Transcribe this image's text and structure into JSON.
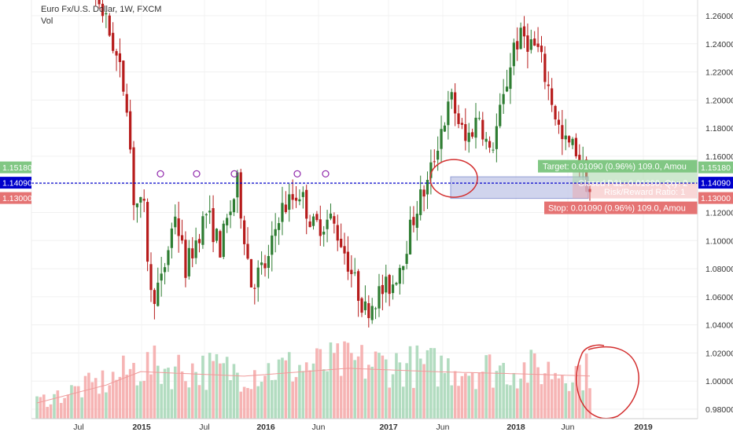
{
  "header": {
    "symbol": "Euro Fx/U.S. Dollar, 1W, FXCM",
    "indicator": "Vol"
  },
  "colors": {
    "up": "#2e7d32",
    "down": "#b71c1c",
    "vol_up": "#a5d6b5",
    "vol_down": "#f4a7a7",
    "price_line": "#0000cc",
    "target": "#81c784",
    "stop": "#e57373",
    "annotation": "#d32f2f"
  },
  "chart_data": {
    "type": "candlestick",
    "ylim": [
      0.97,
      1.27
    ],
    "y_ticks": [
      "0.98000",
      "1.00000",
      "1.02000",
      "1.04000",
      "1.06000",
      "1.08000",
      "1.10000",
      "1.12000",
      "1.14000",
      "1.16000",
      "1.18000",
      "1.20000",
      "1.22000",
      "1.24000",
      "1.26000"
    ],
    "x_ticks": [
      "Jul",
      "2015",
      "Jul",
      "2016",
      "Jun",
      "2017",
      "Jun",
      "2018",
      "Jun",
      "2019"
    ],
    "current_price": "1.14090",
    "price_labels": {
      "target": "1.15180",
      "stop": "1.13000",
      "current": "1.14090"
    },
    "position": {
      "target_text": "Target: 0.01090 (0.96%) 109.0, Amou",
      "pnl_text": "Closed P&L: 0.01090, Qty: 2",
      "rr_text": "Risk/Reward Ratio: 1",
      "stop_text": "Stop: 0.01090 (0.96%) 109.0, Amou",
      "target_price": 1.1518,
      "entry_price": 1.1409,
      "stop_price": 1.13
    },
    "anchors": [
      {
        "t": 0,
        "p": 1.36
      },
      {
        "t": 18,
        "p": 1.27
      },
      {
        "t": 22,
        "p": 1.24
      },
      {
        "t": 26,
        "p": 1.2
      },
      {
        "t": 28,
        "p": 1.13
      },
      {
        "t": 31,
        "p": 1.12
      },
      {
        "t": 33,
        "p": 1.06
      },
      {
        "t": 36,
        "p": 1.07
      },
      {
        "t": 40,
        "p": 1.12
      },
      {
        "t": 43,
        "p": 1.08
      },
      {
        "t": 49,
        "p": 1.12
      },
      {
        "t": 53,
        "p": 1.095
      },
      {
        "t": 58,
        "p": 1.14
      },
      {
        "t": 62,
        "p": 1.07
      },
      {
        "t": 67,
        "p": 1.085
      },
      {
        "t": 70,
        "p": 1.12
      },
      {
        "t": 76,
        "p": 1.135
      },
      {
        "t": 80,
        "p": 1.11
      },
      {
        "t": 85,
        "p": 1.115
      },
      {
        "t": 88,
        "p": 1.1
      },
      {
        "t": 92,
        "p": 1.07
      },
      {
        "t": 95,
        "p": 1.05
      },
      {
        "t": 98,
        "p": 1.06
      },
      {
        "t": 103,
        "p": 1.07
      },
      {
        "t": 106,
        "p": 1.09
      },
      {
        "t": 110,
        "p": 1.125
      },
      {
        "t": 113,
        "p": 1.14
      },
      {
        "t": 117,
        "p": 1.18
      },
      {
        "t": 120,
        "p": 1.2
      },
      {
        "t": 124,
        "p": 1.17
      },
      {
        "t": 128,
        "p": 1.19
      },
      {
        "t": 131,
        "p": 1.16
      },
      {
        "t": 135,
        "p": 1.2
      },
      {
        "t": 138,
        "p": 1.24
      },
      {
        "t": 141,
        "p": 1.245
      },
      {
        "t": 145,
        "p": 1.235
      },
      {
        "t": 149,
        "p": 1.2
      },
      {
        "t": 152,
        "p": 1.17
      },
      {
        "t": 156,
        "p": 1.165
      },
      {
        "t": 160,
        "p": 1.135
      }
    ],
    "n_candles": 161,
    "volume_profile": [
      [
        0,
        0.14
      ],
      [
        20,
        0.3
      ],
      [
        30,
        0.42
      ],
      [
        60,
        0.38
      ],
      [
        90,
        0.45
      ],
      [
        115,
        0.42
      ],
      [
        140,
        0.4
      ],
      [
        161,
        0.38
      ]
    ],
    "volume_ma_label": "",
    "events_count": 6
  }
}
